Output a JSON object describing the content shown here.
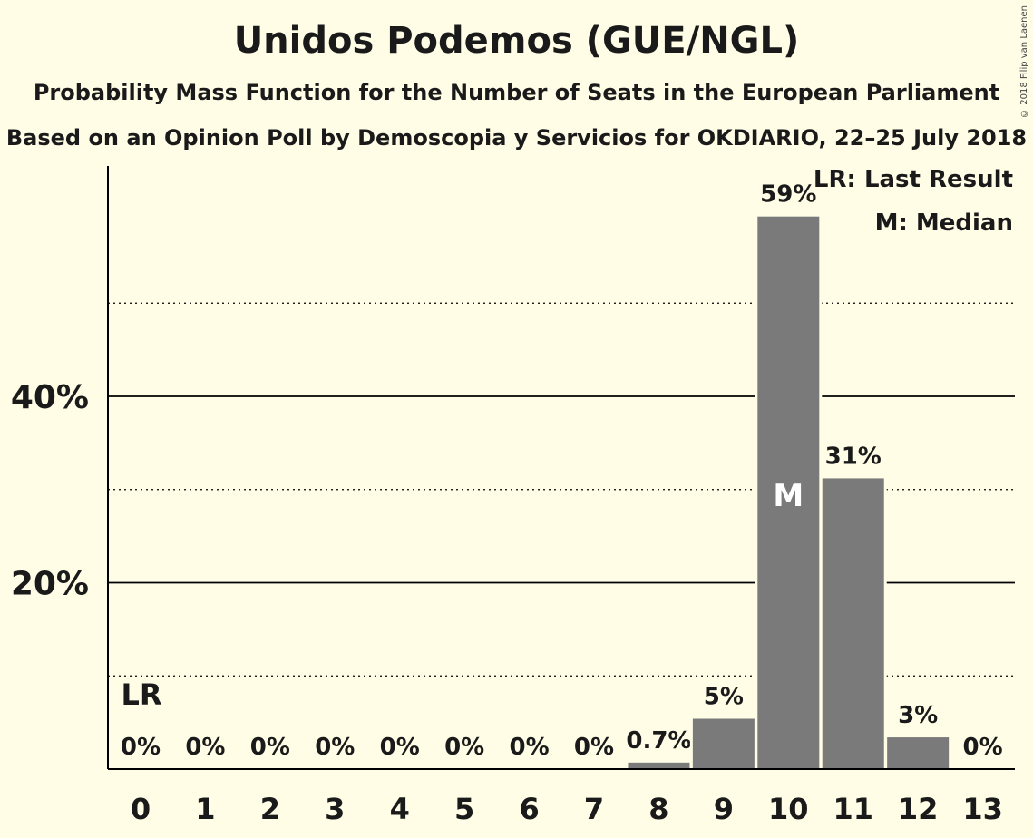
{
  "chart_data": {
    "type": "bar",
    "title": "Unidos Podemos (GUE/NGL)",
    "subtitle": "Probability Mass Function for the Number of Seats in the European Parliament",
    "subtitle2": "Based on an Opinion Poll by Demoscopia y Servicios for OKDIARIO, 22–25 July 2018",
    "categories": [
      "0",
      "1",
      "2",
      "3",
      "4",
      "5",
      "6",
      "7",
      "8",
      "9",
      "10",
      "11",
      "12",
      "13"
    ],
    "values": [
      0,
      0,
      0,
      0,
      0,
      0,
      0,
      0,
      0.7,
      5.4,
      59.3,
      31.2,
      3.4,
      0
    ],
    "value_labels": [
      "0%",
      "0%",
      "0%",
      "0%",
      "0%",
      "0%",
      "0%",
      "0%",
      "0.7%",
      "5%",
      "59%",
      "31%",
      "3%",
      "0%"
    ],
    "y_ticks": [
      {
        "value": 20,
        "label": "20%"
      },
      {
        "value": 40,
        "label": "40%"
      }
    ],
    "dotted_gridlines": [
      10,
      30,
      50
    ],
    "ylim": [
      0,
      65
    ],
    "last_result": {
      "index": 0,
      "label": "LR"
    },
    "median": {
      "index": 10,
      "label": "M"
    },
    "legend": [
      "LR: Last Result",
      "M: Median"
    ],
    "bar_color": "#7a7a7a",
    "background": "#fffde6"
  },
  "copyright": "© 2018 Filip van Laenen"
}
